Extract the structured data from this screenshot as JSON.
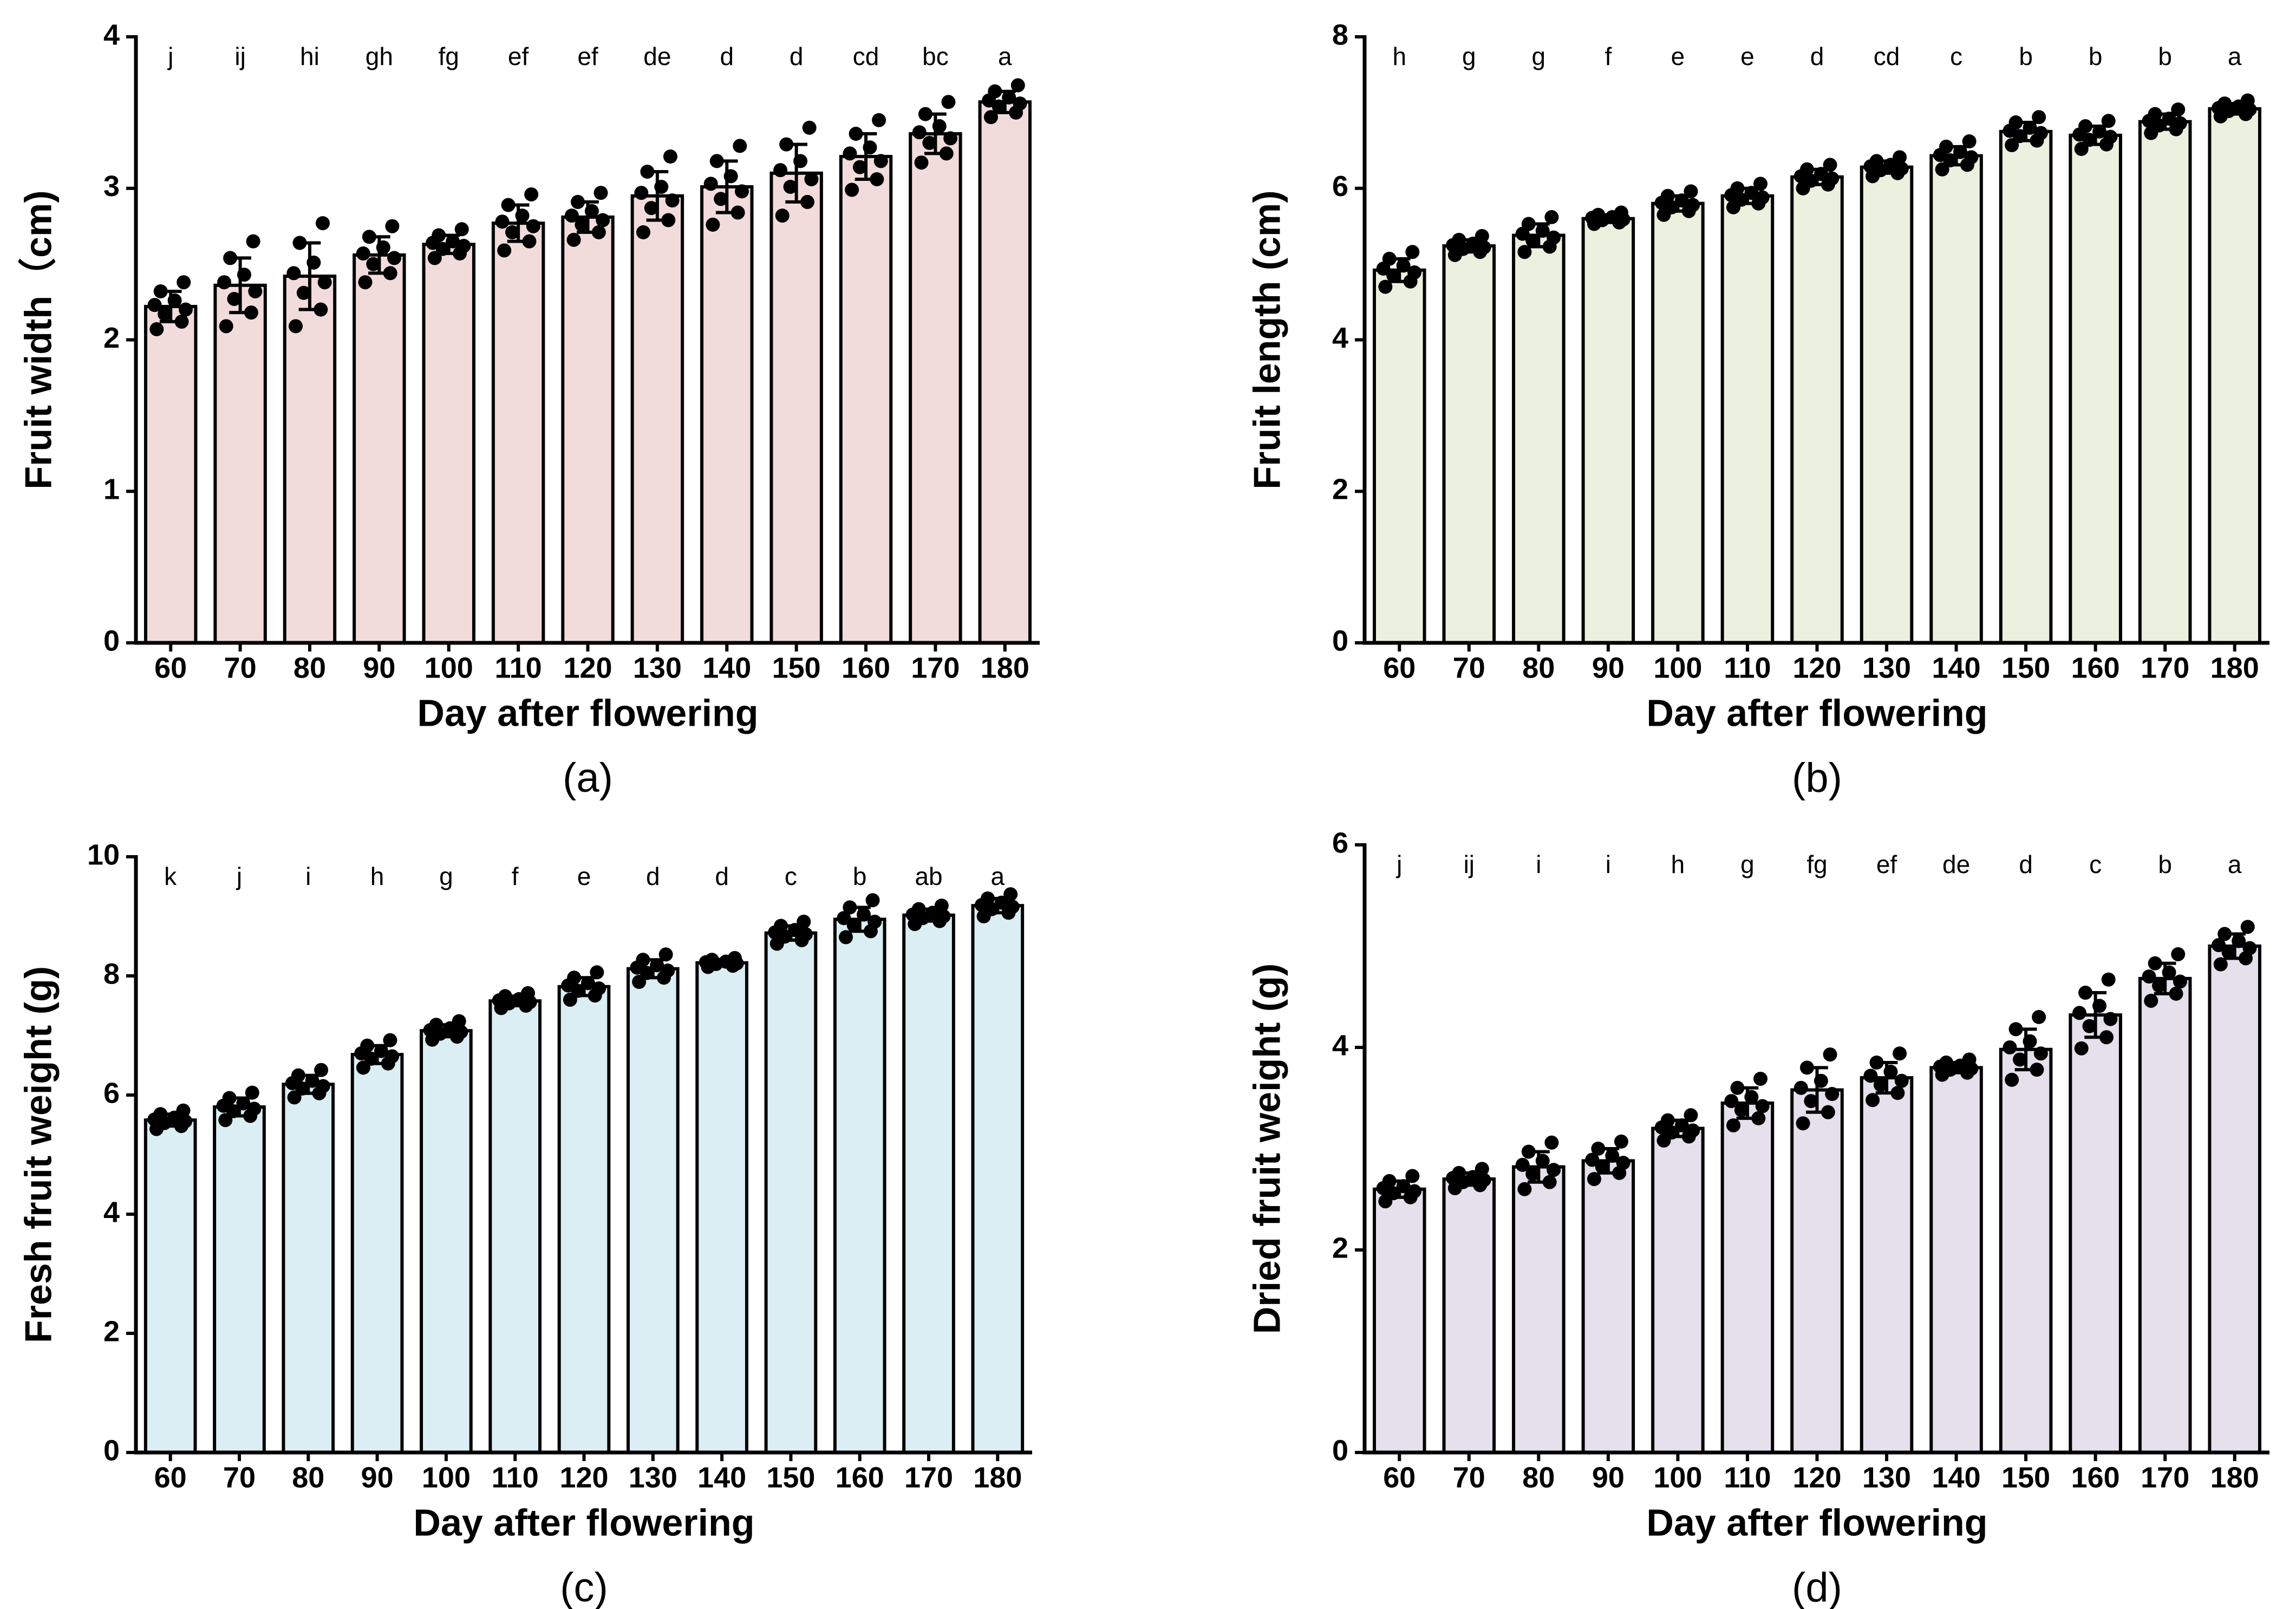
{
  "chart_data": [
    {
      "type": "bar",
      "title": "(a)",
      "x_label": "Day after flowering",
      "y_label": "Fruit width（cm)",
      "color": "#f2dcdb",
      "categories": [
        "60",
        "70",
        "80",
        "90",
        "100",
        "110",
        "120",
        "130",
        "140",
        "150",
        "160",
        "170",
        "180"
      ],
      "values": [
        2.22,
        2.36,
        2.42,
        2.56,
        2.63,
        2.77,
        2.81,
        2.95,
        3.01,
        3.1,
        3.21,
        3.36,
        3.57
      ],
      "errors": [
        0.1,
        0.18,
        0.22,
        0.12,
        0.06,
        0.12,
        0.1,
        0.16,
        0.17,
        0.19,
        0.15,
        0.13,
        0.07
      ],
      "annotations": [
        "j",
        "ij",
        "hi",
        "gh",
        "fg",
        "ef",
        "ef",
        "de",
        "d",
        "d",
        "cd",
        "bc",
        "a"
      ],
      "points": [
        [
          2.07,
          2.12,
          2.17,
          2.2,
          2.23,
          2.26,
          2.32,
          2.38
        ],
        [
          2.09,
          2.18,
          2.27,
          2.32,
          2.38,
          2.43,
          2.54,
          2.65
        ],
        [
          2.09,
          2.2,
          2.31,
          2.38,
          2.44,
          2.51,
          2.64,
          2.77
        ],
        [
          2.38,
          2.44,
          2.5,
          2.54,
          2.57,
          2.61,
          2.68,
          2.75
        ],
        [
          2.54,
          2.57,
          2.6,
          2.62,
          2.64,
          2.65,
          2.69,
          2.73
        ],
        [
          2.59,
          2.65,
          2.71,
          2.75,
          2.78,
          2.82,
          2.89,
          2.96
        ],
        [
          2.66,
          2.71,
          2.76,
          2.79,
          2.82,
          2.85,
          2.91,
          2.97
        ],
        [
          2.71,
          2.79,
          2.87,
          2.92,
          2.97,
          3.01,
          3.11,
          3.21
        ],
        [
          2.76,
          2.84,
          2.93,
          2.98,
          3.03,
          3.08,
          3.18,
          3.28
        ],
        [
          2.82,
          2.91,
          3.01,
          3.06,
          3.12,
          3.18,
          3.29,
          3.4
        ],
        [
          2.99,
          3.06,
          3.14,
          3.18,
          3.23,
          3.27,
          3.36,
          3.45
        ],
        [
          3.17,
          3.23,
          3.3,
          3.33,
          3.37,
          3.41,
          3.49,
          3.57
        ],
        [
          3.47,
          3.5,
          3.54,
          3.56,
          3.58,
          3.6,
          3.64,
          3.68
        ]
      ],
      "ylim": [
        0,
        4
      ],
      "yticks": [
        0,
        1,
        2,
        3,
        4
      ]
    },
    {
      "type": "bar",
      "title": "(b)",
      "x_label": "Day after flowering",
      "y_label": "Fruit length (cm)",
      "color": "#ebf1de",
      "categories": [
        "60",
        "70",
        "80",
        "90",
        "100",
        "110",
        "120",
        "130",
        "140",
        "150",
        "160",
        "170",
        "180"
      ],
      "values": [
        4.92,
        5.24,
        5.38,
        5.6,
        5.8,
        5.9,
        6.15,
        6.28,
        6.43,
        6.75,
        6.7,
        6.88,
        7.05
      ],
      "errors": [
        0.15,
        0.08,
        0.15,
        0.05,
        0.1,
        0.1,
        0.1,
        0.08,
        0.12,
        0.12,
        0.12,
        0.1,
        0.07
      ],
      "annotations": [
        "h",
        "g",
        "g",
        "f",
        "e",
        "e",
        "d",
        "cd",
        "c",
        "b",
        "b",
        "b",
        "a"
      ],
      "points": [
        [
          4.7,
          4.77,
          4.85,
          4.89,
          4.94,
          4.98,
          5.07,
          5.16
        ],
        [
          5.12,
          5.16,
          5.2,
          5.22,
          5.25,
          5.27,
          5.32,
          5.37
        ],
        [
          5.16,
          5.23,
          5.31,
          5.35,
          5.4,
          5.44,
          5.53,
          5.62
        ],
        [
          5.53,
          5.55,
          5.58,
          5.59,
          5.61,
          5.62,
          5.65,
          5.68
        ],
        [
          5.65,
          5.7,
          5.75,
          5.78,
          5.81,
          5.84,
          5.9,
          5.96
        ],
        [
          5.75,
          5.8,
          5.85,
          5.88,
          5.91,
          5.94,
          6.0,
          6.06
        ],
        [
          6.0,
          6.05,
          6.1,
          6.13,
          6.16,
          6.19,
          6.25,
          6.31
        ],
        [
          6.16,
          6.2,
          6.24,
          6.26,
          6.29,
          6.31,
          6.36,
          6.41
        ],
        [
          6.25,
          6.31,
          6.37,
          6.41,
          6.44,
          6.48,
          6.55,
          6.62
        ],
        [
          6.57,
          6.63,
          6.69,
          6.73,
          6.76,
          6.8,
          6.87,
          6.94
        ],
        [
          6.52,
          6.58,
          6.64,
          6.68,
          6.71,
          6.75,
          6.82,
          6.89
        ],
        [
          6.73,
          6.78,
          6.83,
          6.86,
          6.89,
          6.92,
          6.98,
          7.04
        ],
        [
          6.95,
          6.98,
          7.02,
          7.04,
          7.06,
          7.08,
          7.12,
          7.16
        ]
      ],
      "ylim": [
        0,
        8
      ],
      "yticks": [
        0,
        2,
        4,
        6,
        8
      ]
    },
    {
      "type": "bar",
      "title": "(c)",
      "x_label": "Day after flowering",
      "y_label": "Fresh fruit weight (g)",
      "color": "#dbeef4",
      "categories": [
        "60",
        "70",
        "80",
        "90",
        "100",
        "110",
        "120",
        "130",
        "140",
        "150",
        "160",
        "170",
        "180"
      ],
      "values": [
        5.58,
        5.8,
        6.18,
        6.68,
        7.08,
        7.58,
        7.82,
        8.12,
        8.22,
        8.72,
        8.95,
        9.02,
        9.18
      ],
      "errors": [
        0.1,
        0.15,
        0.15,
        0.15,
        0.1,
        0.08,
        0.15,
        0.15,
        0.05,
        0.12,
        0.2,
        0.1,
        0.12
      ],
      "annotations": [
        "k",
        "j",
        "i",
        "h",
        "g",
        "f",
        "e",
        "d",
        "d",
        "c",
        "b",
        "ab",
        "a"
      ],
      "points": [
        [
          5.43,
          5.48,
          5.53,
          5.56,
          5.59,
          5.62,
          5.68,
          5.74
        ],
        [
          5.58,
          5.65,
          5.73,
          5.77,
          5.82,
          5.86,
          5.95,
          6.04
        ],
        [
          5.96,
          6.03,
          6.11,
          6.15,
          6.2,
          6.24,
          6.33,
          6.42
        ],
        [
          6.46,
          6.53,
          6.61,
          6.65,
          6.7,
          6.74,
          6.83,
          6.92
        ],
        [
          6.93,
          6.98,
          7.03,
          7.06,
          7.09,
          7.12,
          7.18,
          7.24
        ],
        [
          7.46,
          7.5,
          7.54,
          7.56,
          7.59,
          7.61,
          7.66,
          7.71
        ],
        [
          7.6,
          7.67,
          7.75,
          7.79,
          7.84,
          7.88,
          7.97,
          8.06
        ],
        [
          7.9,
          7.97,
          8.05,
          8.09,
          8.14,
          8.18,
          8.27,
          8.36
        ],
        [
          8.15,
          8.17,
          8.2,
          8.21,
          8.23,
          8.24,
          8.27,
          8.3
        ],
        [
          8.54,
          8.6,
          8.66,
          8.7,
          8.73,
          8.77,
          8.84,
          8.91
        ],
        [
          8.65,
          8.75,
          8.85,
          8.91,
          8.97,
          9.03,
          9.15,
          9.27
        ],
        [
          8.87,
          8.92,
          8.97,
          9.0,
          9.03,
          9.06,
          9.12,
          9.18
        ],
        [
          9.0,
          9.06,
          9.12,
          9.16,
          9.19,
          9.23,
          9.3,
          9.37
        ]
      ],
      "ylim": [
        0,
        10
      ],
      "yticks": [
        0,
        2,
        4,
        6,
        8,
        10
      ]
    },
    {
      "type": "bar",
      "title": "(d)",
      "x_label": "Day after flowering",
      "y_label": "Dried fruit weight (g)",
      "color": "#e5e0ec",
      "categories": [
        "60",
        "70",
        "80",
        "90",
        "100",
        "110",
        "120",
        "130",
        "140",
        "150",
        "160",
        "170",
        "180"
      ],
      "values": [
        2.6,
        2.7,
        2.82,
        2.88,
        3.2,
        3.45,
        3.58,
        3.7,
        3.8,
        3.98,
        4.32,
        4.68,
        5.0
      ],
      "errors": [
        0.08,
        0.06,
        0.15,
        0.12,
        0.08,
        0.15,
        0.22,
        0.15,
        0.05,
        0.2,
        0.22,
        0.15,
        0.12
      ],
      "annotations": [
        "j",
        "ij",
        "i",
        "i",
        "h",
        "g",
        "fg",
        "ef",
        "de",
        "d",
        "c",
        "b",
        "a"
      ],
      "points": [
        [
          2.48,
          2.52,
          2.56,
          2.58,
          2.61,
          2.63,
          2.68,
          2.73
        ],
        [
          2.61,
          2.64,
          2.67,
          2.69,
          2.71,
          2.72,
          2.76,
          2.8
        ],
        [
          2.6,
          2.67,
          2.75,
          2.79,
          2.84,
          2.88,
          2.97,
          3.06
        ],
        [
          2.7,
          2.76,
          2.82,
          2.86,
          2.89,
          2.93,
          3.0,
          3.07
        ],
        [
          3.08,
          3.12,
          3.16,
          3.18,
          3.21,
          3.23,
          3.28,
          3.33
        ],
        [
          3.23,
          3.3,
          3.38,
          3.42,
          3.47,
          3.51,
          3.6,
          3.69
        ],
        [
          3.25,
          3.36,
          3.47,
          3.54,
          3.6,
          3.67,
          3.8,
          3.93
        ],
        [
          3.48,
          3.55,
          3.63,
          3.67,
          3.72,
          3.76,
          3.85,
          3.94
        ],
        [
          3.73,
          3.75,
          3.78,
          3.79,
          3.81,
          3.82,
          3.85,
          3.88
        ],
        [
          3.68,
          3.78,
          3.88,
          3.94,
          4.0,
          4.06,
          4.18,
          4.3
        ],
        [
          3.99,
          4.1,
          4.21,
          4.28,
          4.34,
          4.41,
          4.54,
          4.67
        ],
        [
          4.46,
          4.53,
          4.61,
          4.65,
          4.7,
          4.74,
          4.83,
          4.92
        ],
        [
          4.82,
          4.88,
          4.94,
          4.98,
          5.01,
          5.05,
          5.12,
          5.19
        ]
      ],
      "ylim": [
        0,
        6
      ],
      "yticks": [
        0,
        2,
        4,
        6
      ]
    }
  ]
}
